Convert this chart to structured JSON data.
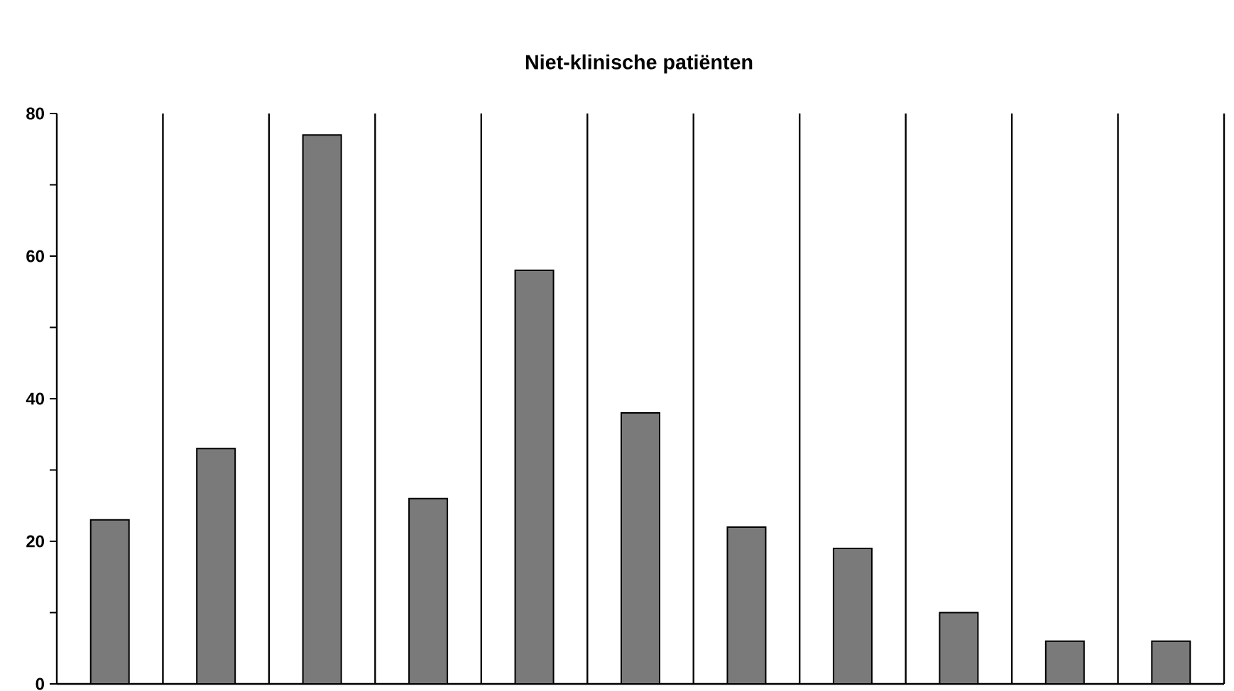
{
  "chart_data": {
    "type": "bar",
    "title": "Niet-klinische patiënten",
    "categories": [
      null,
      null,
      null,
      null,
      null,
      null,
      null,
      null,
      null,
      null,
      null
    ],
    "values": [
      23,
      33,
      77,
      26,
      58,
      38,
      22,
      19,
      10,
      6,
      6
    ],
    "color": "#7a7a7a",
    "ylim": [
      0,
      80
    ],
    "yticks": [
      0,
      {
        "value": 10,
        "label": null
      },
      20,
      {
        "value": 30,
        "label": null
      },
      40,
      {
        "value": 50,
        "label": null
      },
      60,
      {
        "value": 70,
        "label": null
      },
      80
    ],
    "grid": "x",
    "tick_labels": "y"
  }
}
